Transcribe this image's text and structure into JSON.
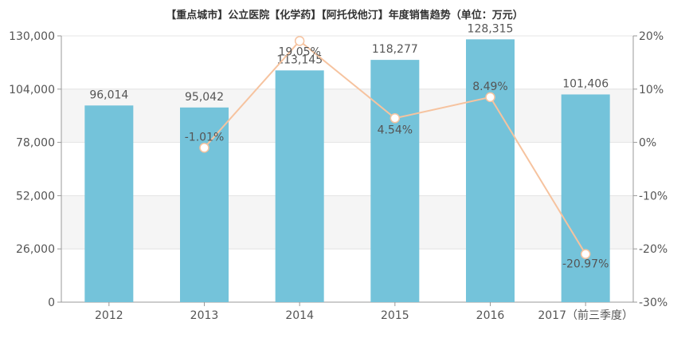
{
  "chart_data": {
    "type": "bar",
    "title": "【重点城市】公立医院【化学药】【阿托伐他汀】年度销售趋势（单位：万元）",
    "categories": [
      "2012",
      "2013",
      "2014",
      "2015",
      "2016",
      "2017（前三季度）"
    ],
    "series": [
      {
        "type": "bar",
        "values": [
          96014,
          95042,
          113145,
          118277,
          128315,
          101406
        ],
        "labels": [
          "96,014",
          "95,042",
          "113,145",
          "118,277",
          "128,315",
          "101,406"
        ]
      },
      {
        "type": "line",
        "axis": "right",
        "values": [
          null,
          -1.01,
          19.05,
          4.54,
          8.49,
          -20.97
        ],
        "labels": [
          "",
          "-1.01%",
          "19.05%",
          "4.54%",
          "8.49%",
          "-20.97%"
        ]
      }
    ],
    "y_left": {
      "ylim": [
        0,
        130000
      ],
      "ticks": [
        "0",
        "26,000",
        "52,000",
        "78,000",
        "104,000",
        "130,000"
      ]
    },
    "y_right": {
      "ylim": [
        -30,
        20
      ],
      "ticks": [
        "-30%",
        "-20%",
        "-10%",
        "0%",
        "10%",
        "20%"
      ]
    },
    "grid": true,
    "bar_color": "#74c3da",
    "line_color": "#f6c39f",
    "band_color": "#f5f5f5"
  }
}
